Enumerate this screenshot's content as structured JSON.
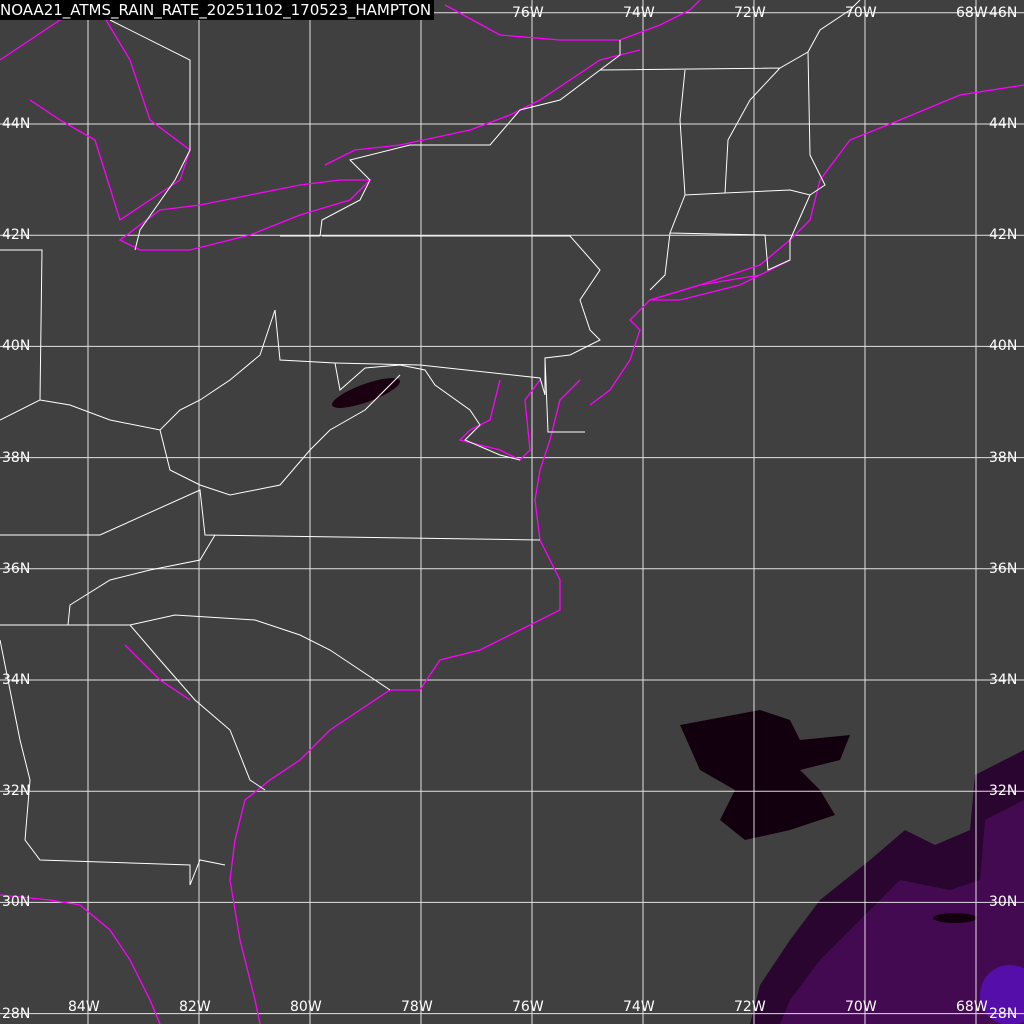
{
  "title": "NOAA21_ATMS_RAIN_RATE_20251102_170523_HAMPTON",
  "colors": {
    "background": "#404040",
    "grid": "#ffffff",
    "coastline": "#ff00ff",
    "borders": "#ffffff",
    "rain_low": "#1a0010",
    "rain_mid": "#4a0a5a",
    "rain_high": "#5a10c0"
  },
  "map": {
    "lon_range": [
      -85.6,
      -67.3
    ],
    "lat_range": [
      27.8,
      46.2
    ],
    "grid_step_deg": 2
  },
  "lon_labels": [
    "84W",
    "82W",
    "80W",
    "78W",
    "76W",
    "74W",
    "72W",
    "70W",
    "68W"
  ],
  "top_lon_labels": [
    "76W",
    "74W",
    "72W",
    "70W",
    "68W"
  ],
  "lat_labels": [
    "46N",
    "44N",
    "42N",
    "40N",
    "38N",
    "36N",
    "34N",
    "32N",
    "30N",
    "28N"
  ]
}
